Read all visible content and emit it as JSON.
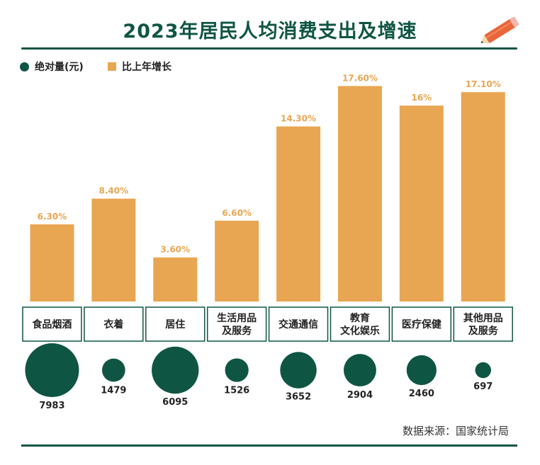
{
  "title": "2023年居民人均消费支出及增速",
  "legend": {
    "absolute_label": "绝对量(元)",
    "growth_label": "比上年增长"
  },
  "source": "数据来源：国家统计局",
  "colors": {
    "bar": "#e9a652",
    "circle": "#0f5544",
    "title": "#0f5544",
    "category_border": "#0f5544"
  },
  "chart_data": {
    "type": "bar",
    "title": "2023年居民人均消费支出及增速",
    "categories": [
      [
        "食品烟酒"
      ],
      [
        "衣着"
      ],
      [
        "居住"
      ],
      [
        "生活用品",
        "及服务"
      ],
      [
        "交通通信"
      ],
      [
        "教育",
        "文化娱乐"
      ],
      [
        "医疗保健"
      ],
      [
        "其他用品",
        "及服务"
      ]
    ],
    "series": [
      {
        "name": "比上年增长",
        "unit": "%",
        "values": [
          6.3,
          8.4,
          3.6,
          6.6,
          14.3,
          17.6,
          16,
          17.1
        ],
        "labels": [
          "6.30%",
          "8.40%",
          "3.60%",
          "6.60%",
          "14.30%",
          "17.60%",
          "16%",
          "17.10%"
        ]
      },
      {
        "name": "绝对量(元)",
        "unit": "元",
        "values": [
          7983,
          1479,
          6095,
          1526,
          3652,
          2904,
          2460,
          697
        ],
        "labels": [
          "7983",
          "1479",
          "6095",
          "1526",
          "3652",
          "2904",
          "2460",
          "697"
        ]
      }
    ],
    "ylim": [
      0,
      20
    ],
    "grid": false,
    "legend_position": "top-left"
  }
}
